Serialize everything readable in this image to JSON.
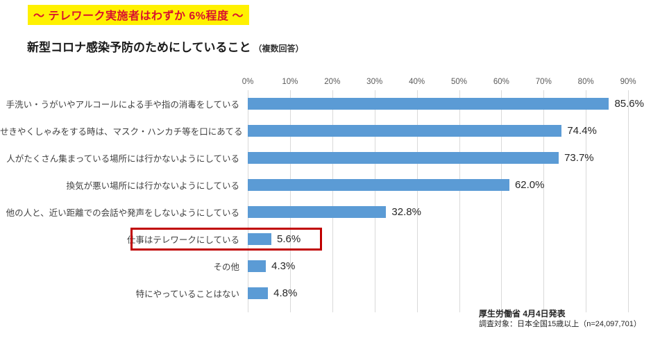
{
  "headline": "〜 テレワーク実施者はわずか 6%程度 〜",
  "chart": {
    "title": "新型コロナ感染予防のためにしていること",
    "title_suffix": "（複数回答）"
  },
  "chart_data": {
    "type": "bar",
    "orientation": "horizontal",
    "title": "新型コロナ感染予防のためにしていること（複数回答）",
    "categories": [
      "手洗い・うがいやアルコールによる手や指の消毒をしている",
      "せきやくしゃみをする時は、マスク・ハンカチ等を口にあてる",
      "人がたくさん集まっている場所には行かないようにしている",
      "換気が悪い場所には行かないようにしている",
      "他の人と、近い距離での会話や発声をしないようにしている",
      "仕事はテレワークにしている",
      "その他",
      "特にやっていることはない"
    ],
    "values": [
      85.6,
      74.4,
      73.7,
      62.0,
      32.8,
      5.6,
      4.3,
      4.8
    ],
    "value_labels": [
      "85.6%",
      "74.4%",
      "73.7%",
      "62.0%",
      "32.8%",
      "5.6%",
      "4.3%",
      "4.8%"
    ],
    "x_ticks": [
      "0%",
      "10%",
      "20%",
      "30%",
      "40%",
      "50%",
      "60%",
      "70%",
      "80%",
      "90%"
    ],
    "xlim": [
      0,
      90
    ],
    "grid": "vertical",
    "legend": "none",
    "bar_color": "#5b9bd5",
    "highlight": {
      "index": 5,
      "box_color": "#c00000"
    }
  },
  "footer": {
    "source": "厚生労働省 4月4日発表",
    "target": "調査対象：日本全国15歳以上（n=24,097,701）"
  }
}
